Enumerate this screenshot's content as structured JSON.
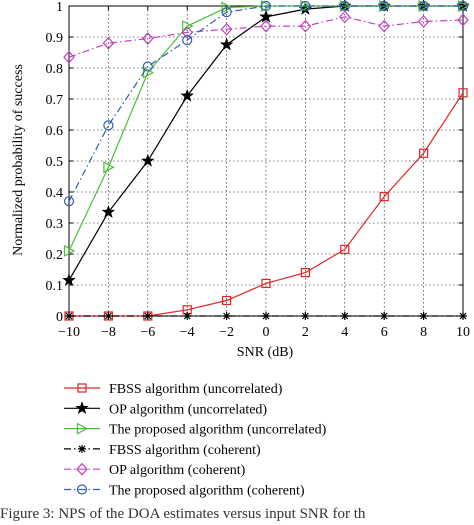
{
  "chart_data": {
    "type": "line",
    "xlabel": "SNR (dB)",
    "ylabel": "Normalized probability of success",
    "xlim": [
      -10,
      10
    ],
    "ylim": [
      0,
      1
    ],
    "x_ticks": [
      "−10",
      "−8",
      "−6",
      "−4",
      "−2",
      "0",
      "2",
      "4",
      "6",
      "8",
      "10"
    ],
    "y_ticks": [
      "0",
      "0.1",
      "0.2",
      "0.3",
      "0.4",
      "0.5",
      "0.6",
      "0.7",
      "0.8",
      "0.9",
      "1"
    ],
    "grid": true,
    "legend_position": "below",
    "x": [
      -10,
      -8,
      -6,
      -4,
      -2,
      0,
      2,
      4,
      6,
      8,
      10
    ],
    "series": [
      {
        "name": "FBSS algorithm (uncorrelated)",
        "color": "#e32424",
        "marker": "square",
        "dash": "solid",
        "values": [
          0,
          0,
          0,
          0.02,
          0.05,
          0.105,
          0.14,
          0.215,
          0.385,
          0.525,
          0.72
        ]
      },
      {
        "name": "OP algorithm (uncorrelated)",
        "color": "#000000",
        "marker": "star",
        "dash": "solid",
        "values": [
          0.115,
          0.335,
          0.5,
          0.71,
          0.875,
          0.965,
          0.99,
          1,
          1,
          1,
          1
        ]
      },
      {
        "name": "The proposed algorithm (uncorrelated)",
        "color": "#4dbf3a",
        "marker": "triangle-right",
        "dash": "solid",
        "values": [
          0.21,
          0.48,
          0.785,
          0.935,
          0.995,
          1,
          1,
          1,
          1,
          1,
          1
        ]
      },
      {
        "name": "FBSS algorithm (coherent)",
        "color": "#000000",
        "marker": "asterisk",
        "dash": "dashdot",
        "values": [
          0,
          0,
          0,
          0,
          0,
          0,
          0,
          0,
          0,
          0,
          0
        ]
      },
      {
        "name": "OP algorithm (coherent)",
        "color": "#c040c0",
        "marker": "diamond",
        "dash": "dashdot",
        "values": [
          0.835,
          0.88,
          0.895,
          0.915,
          0.925,
          0.935,
          0.935,
          0.965,
          0.935,
          0.95,
          0.955
        ]
      },
      {
        "name": "The proposed algorithm (coherent)",
        "color": "#2f5fb0",
        "marker": "circle",
        "dash": "dashdot",
        "values": [
          0.37,
          0.615,
          0.805,
          0.89,
          0.98,
          1,
          1,
          1,
          1,
          1,
          1
        ]
      }
    ]
  },
  "caption": "Figure 3: NPS of the DOA estimates versus input SNR for th"
}
